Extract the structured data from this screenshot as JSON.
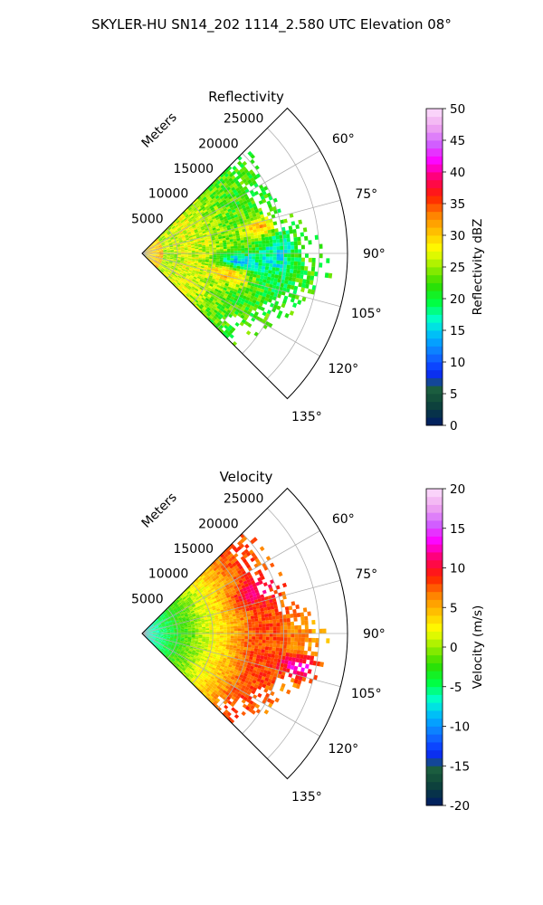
{
  "suptitle": "SKYLER-HU  SN14_202  1114_2.580 UTC Elevation 08°",
  "chart_data": [
    {
      "type": "heatmap",
      "subtype": "polar-sector",
      "title": "Reflectivity",
      "range_axis_label": "Meters",
      "range_ticks": [
        "5000",
        "10000",
        "15000",
        "20000",
        "25000"
      ],
      "range_max": 29000,
      "angle_ticks": [
        "60°",
        "75°",
        "90°",
        "105°",
        "120°",
        "135°"
      ],
      "angle_range_deg": [
        45,
        135
      ],
      "colorbar": {
        "label": "Reflectivity dBZ",
        "min": 0,
        "max": 50,
        "ticks": [
          "0",
          "5",
          "10",
          "15",
          "20",
          "25",
          "30",
          "35",
          "40",
          "45",
          "50"
        ],
        "colors": [
          "#001a66",
          "#0b3d3d",
          "#1b5e3a",
          "#0a2bff",
          "#1070ff",
          "#00b2ff",
          "#00ffd0",
          "#00ff40",
          "#30dd00",
          "#9aee00",
          "#ffff00",
          "#ffc000",
          "#ff8000",
          "#ff2000",
          "#ff0060",
          "#ff00ff",
          "#d060ff",
          "#f0a8f0",
          "#fde0fd"
        ]
      },
      "field_hint": "reflectivity 15-35 dBZ, cores ~35 dBZ near 78° and 104°, lower values near 12-18 km at 95°"
    },
    {
      "type": "heatmap",
      "subtype": "polar-sector",
      "title": "Velocity",
      "range_axis_label": "Meters",
      "range_ticks": [
        "5000",
        "10000",
        "15000",
        "20000",
        "25000"
      ],
      "range_max": 29000,
      "angle_ticks": [
        "60°",
        "75°",
        "90°",
        "105°",
        "120°",
        "135°"
      ],
      "angle_range_deg": [
        45,
        135
      ],
      "colorbar": {
        "label": "Velocity (m/s)",
        "min": -20,
        "max": 20,
        "ticks": [
          "-20",
          "-15",
          "-10",
          "-5",
          "0",
          "5",
          "10",
          "15",
          "20"
        ],
        "colors": [
          "#001a66",
          "#0b3d3d",
          "#1b5e3a",
          "#0a2bff",
          "#1070ff",
          "#00b2ff",
          "#00ffd0",
          "#00ff40",
          "#30dd00",
          "#9aee00",
          "#ffff00",
          "#ffc000",
          "#ff8000",
          "#ff2000",
          "#ff0060",
          "#ff00ff",
          "#d060ff",
          "#f0a8f0",
          "#fde0fd"
        ]
      },
      "field_hint": "velocity -8 m/s near radar increasing to 8-12 m/s at far range, ~15 m/s pocket near 100-105° at 23 km"
    }
  ]
}
